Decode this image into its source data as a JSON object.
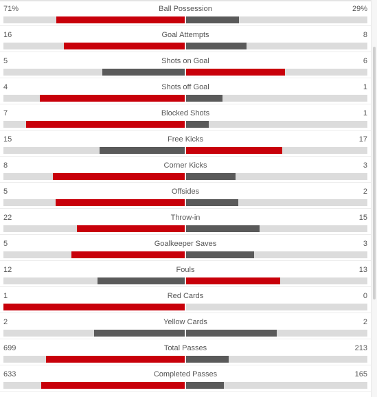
{
  "colors": {
    "winner": "#c8000a",
    "other": "#5a5a5a",
    "track": "#dcdcdc"
  },
  "stats": [
    {
      "label": "Ball Possession",
      "home": "71%",
      "away": "29%",
      "home_value": 71,
      "away_value": 29,
      "home_fraction": 0.71,
      "away_fraction": 0.29
    },
    {
      "label": "Goal Attempts",
      "home": "16",
      "away": "8",
      "home_value": 16,
      "away_value": 8,
      "home_fraction": 0.667,
      "away_fraction": 0.333
    },
    {
      "label": "Shots on Goal",
      "home": "5",
      "away": "6",
      "home_value": 5,
      "away_value": 6,
      "home_fraction": 0.455,
      "away_fraction": 0.545
    },
    {
      "label": "Shots off Goal",
      "home": "4",
      "away": "1",
      "home_value": 4,
      "away_value": 1,
      "home_fraction": 0.8,
      "away_fraction": 0.2
    },
    {
      "label": "Blocked Shots",
      "home": "7",
      "away": "1",
      "home_value": 7,
      "away_value": 1,
      "home_fraction": 0.875,
      "away_fraction": 0.125
    },
    {
      "label": "Free Kicks",
      "home": "15",
      "away": "17",
      "home_value": 15,
      "away_value": 17,
      "home_fraction": 0.469,
      "away_fraction": 0.531
    },
    {
      "label": "Corner Kicks",
      "home": "8",
      "away": "3",
      "home_value": 8,
      "away_value": 3,
      "home_fraction": 0.727,
      "away_fraction": 0.273
    },
    {
      "label": "Offsides",
      "home": "5",
      "away": "2",
      "home_value": 5,
      "away_value": 2,
      "home_fraction": 0.714,
      "away_fraction": 0.286
    },
    {
      "label": "Throw-in",
      "home": "22",
      "away": "15",
      "home_value": 22,
      "away_value": 15,
      "home_fraction": 0.595,
      "away_fraction": 0.405
    },
    {
      "label": "Goalkeeper Saves",
      "home": "5",
      "away": "3",
      "home_value": 5,
      "away_value": 3,
      "home_fraction": 0.625,
      "away_fraction": 0.375
    },
    {
      "label": "Fouls",
      "home": "12",
      "away": "13",
      "home_value": 12,
      "away_value": 13,
      "home_fraction": 0.48,
      "away_fraction": 0.52
    },
    {
      "label": "Red Cards",
      "home": "1",
      "away": "0",
      "home_value": 1,
      "away_value": 0,
      "home_fraction": 1.0,
      "away_fraction": 0.0
    },
    {
      "label": "Yellow Cards",
      "home": "2",
      "away": "2",
      "home_value": 2,
      "away_value": 2,
      "home_fraction": 0.5,
      "away_fraction": 0.5
    },
    {
      "label": "Total Passes",
      "home": "699",
      "away": "213",
      "home_value": 699,
      "away_value": 213,
      "home_fraction": 0.766,
      "away_fraction": 0.234
    },
    {
      "label": "Completed Passes",
      "home": "633",
      "away": "165",
      "home_value": 633,
      "away_value": 165,
      "home_fraction": 0.793,
      "away_fraction": 0.207
    }
  ]
}
